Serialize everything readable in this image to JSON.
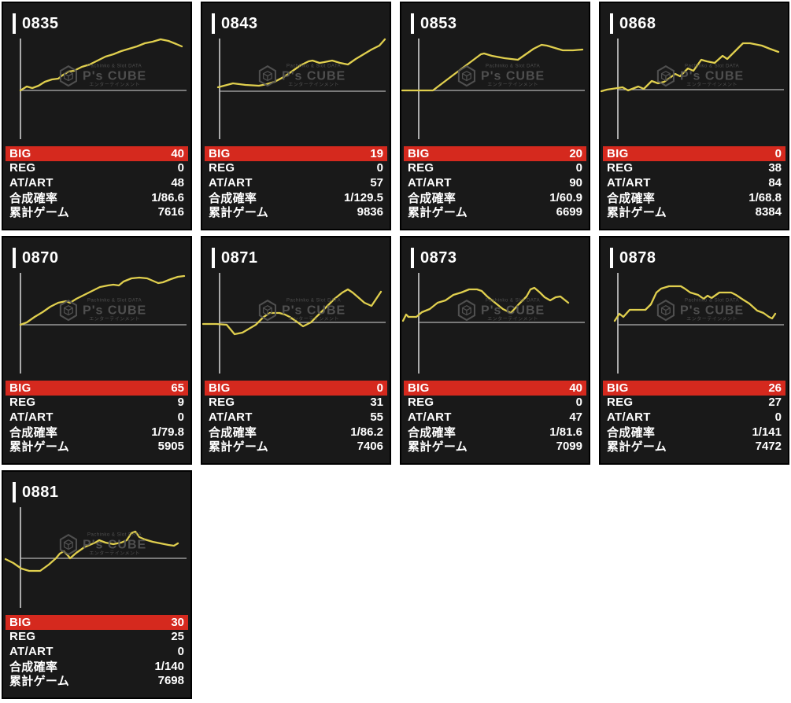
{
  "colors": {
    "page_bg": "#ffffff",
    "card_bg": "#191919",
    "card_border": "#000000",
    "axis": "#b3b3b3",
    "line": "#e0cf4e",
    "big_row_bg": "#d5291e",
    "text": "#ffffff",
    "watermark": "#555555"
  },
  "watermark": {
    "top": "Pachinko & Slot DATA",
    "brand": "P's CUBE",
    "bottom": "エンターテインメント",
    "logo": "cube-hexagon"
  },
  "stat_fields": [
    {
      "key": "big",
      "label": "BIG"
    },
    {
      "key": "reg",
      "label": "REG"
    },
    {
      "key": "atart",
      "label": "AT/ART"
    },
    {
      "key": "rate",
      "label": "合成確率"
    },
    {
      "key": "games",
      "label": "累計ゲーム"
    }
  ],
  "cards": [
    {
      "id": "0835",
      "big": "40",
      "reg": "0",
      "atart": "48",
      "rate": "1/86.6",
      "games": "7616",
      "chart": {
        "type": "line",
        "baseline": 68,
        "points": [
          [
            22,
            68
          ],
          [
            30,
            63
          ],
          [
            37,
            65
          ],
          [
            45,
            62
          ],
          [
            53,
            57
          ],
          [
            62,
            54
          ],
          [
            70,
            53
          ],
          [
            75,
            49
          ],
          [
            83,
            44
          ],
          [
            90,
            43
          ],
          [
            100,
            38
          ],
          [
            110,
            35
          ],
          [
            120,
            30
          ],
          [
            130,
            25
          ],
          [
            140,
            22
          ],
          [
            150,
            18
          ],
          [
            160,
            15
          ],
          [
            170,
            12
          ],
          [
            180,
            8
          ],
          [
            190,
            6
          ],
          [
            200,
            3
          ],
          [
            210,
            5
          ],
          [
            220,
            9
          ],
          [
            227,
            12
          ]
        ]
      }
    },
    {
      "id": "0843",
      "big": "19",
      "reg": "0",
      "atart": "57",
      "rate": "1/129.5",
      "games": "9836",
      "chart": {
        "type": "line",
        "baseline": 69,
        "points": [
          [
            20,
            64
          ],
          [
            39,
            59
          ],
          [
            55,
            61
          ],
          [
            72,
            62
          ],
          [
            82,
            60
          ],
          [
            92,
            57
          ],
          [
            105,
            50
          ],
          [
            115,
            43
          ],
          [
            125,
            36
          ],
          [
            135,
            31
          ],
          [
            140,
            30
          ],
          [
            149,
            33
          ],
          [
            155,
            32
          ],
          [
            165,
            30
          ],
          [
            175,
            33
          ],
          [
            185,
            35
          ],
          [
            195,
            28
          ],
          [
            205,
            22
          ],
          [
            215,
            16
          ],
          [
            225,
            11
          ],
          [
            232,
            3
          ]
        ]
      }
    },
    {
      "id": "0853",
      "big": "20",
      "reg": "0",
      "atart": "90",
      "rate": "1/60.9",
      "games": "6699",
      "chart": {
        "type": "line",
        "baseline": 68,
        "points": [
          [
            1,
            68
          ],
          [
            40,
            68
          ],
          [
            65,
            49
          ],
          [
            81,
            37
          ],
          [
            101,
            22
          ],
          [
            105,
            21
          ],
          [
            115,
            24
          ],
          [
            131,
            27
          ],
          [
            148,
            29
          ],
          [
            158,
            22
          ],
          [
            168,
            15
          ],
          [
            178,
            10
          ],
          [
            185,
            11
          ],
          [
            195,
            14
          ],
          [
            205,
            17
          ],
          [
            218,
            17
          ],
          [
            230,
            16
          ]
        ]
      }
    },
    {
      "id": "0868",
      "big": "0",
      "reg": "38",
      "atart": "84",
      "rate": "1/68.8",
      "games": "8384",
      "chart": {
        "type": "line",
        "baseline": 67,
        "points": [
          [
            1,
            69
          ],
          [
            8,
            67
          ],
          [
            28,
            64
          ],
          [
            35,
            68
          ],
          [
            48,
            63
          ],
          [
            55,
            66
          ],
          [
            65,
            56
          ],
          [
            73,
            59
          ],
          [
            81,
            57
          ],
          [
            95,
            47
          ],
          [
            101,
            50
          ],
          [
            111,
            40
          ],
          [
            118,
            43
          ],
          [
            128,
            29
          ],
          [
            135,
            31
          ],
          [
            145,
            33
          ],
          [
            155,
            24
          ],
          [
            161,
            28
          ],
          [
            181,
            8
          ],
          [
            190,
            8
          ],
          [
            205,
            11
          ],
          [
            215,
            15
          ],
          [
            226,
            19
          ]
        ]
      }
    },
    {
      "id": "0870",
      "big": "65",
      "reg": "9",
      "atart": "0",
      "rate": "1/79.8",
      "games": "5905",
      "chart": {
        "type": "line",
        "baseline": 68,
        "points": [
          [
            22,
            68
          ],
          [
            30,
            65
          ],
          [
            40,
            58
          ],
          [
            50,
            52
          ],
          [
            60,
            45
          ],
          [
            70,
            40
          ],
          [
            80,
            38
          ],
          [
            85,
            40
          ],
          [
            93,
            35
          ],
          [
            103,
            30
          ],
          [
            113,
            25
          ],
          [
            123,
            20
          ],
          [
            133,
            18
          ],
          [
            140,
            17
          ],
          [
            147,
            18
          ],
          [
            153,
            13
          ],
          [
            163,
            9
          ],
          [
            173,
            8
          ],
          [
            183,
            9
          ],
          [
            190,
            12
          ],
          [
            197,
            15
          ],
          [
            203,
            14
          ],
          [
            213,
            10
          ],
          [
            222,
            7
          ],
          [
            230,
            6
          ]
        ]
      }
    },
    {
      "id": "0871",
      "big": "0",
      "reg": "31",
      "atart": "55",
      "rate": "1/86.2",
      "games": "7406",
      "chart": {
        "type": "line",
        "baseline": 65,
        "points": [
          [
            1,
            67
          ],
          [
            18,
            67
          ],
          [
            31,
            68
          ],
          [
            41,
            80
          ],
          [
            51,
            78
          ],
          [
            68,
            68
          ],
          [
            78,
            58
          ],
          [
            86,
            53
          ],
          [
            98,
            53
          ],
          [
            105,
            55
          ],
          [
            111,
            58
          ],
          [
            120,
            64
          ],
          [
            128,
            70
          ],
          [
            138,
            65
          ],
          [
            148,
            55
          ],
          [
            158,
            45
          ],
          [
            168,
            35
          ],
          [
            178,
            27
          ],
          [
            185,
            23
          ],
          [
            191,
            27
          ],
          [
            198,
            33
          ],
          [
            206,
            40
          ],
          [
            215,
            44
          ],
          [
            221,
            35
          ],
          [
            227,
            26
          ]
        ]
      }
    },
    {
      "id": "0873",
      "big": "40",
      "reg": "0",
      "atart": "47",
      "rate": "1/81.6",
      "games": "7099",
      "chart": {
        "type": "line",
        "baseline": 65,
        "points": [
          [
            2,
            63
          ],
          [
            6,
            55
          ],
          [
            9,
            58
          ],
          [
            19,
            58
          ],
          [
            26,
            52
          ],
          [
            36,
            48
          ],
          [
            46,
            40
          ],
          [
            56,
            37
          ],
          [
            66,
            30
          ],
          [
            76,
            27
          ],
          [
            86,
            23
          ],
          [
            96,
            23
          ],
          [
            102,
            25
          ],
          [
            109,
            32
          ],
          [
            119,
            40
          ],
          [
            129,
            48
          ],
          [
            139,
            53
          ],
          [
            149,
            42
          ],
          [
            159,
            32
          ],
          [
            164,
            23
          ],
          [
            169,
            21
          ],
          [
            176,
            27
          ],
          [
            182,
            33
          ],
          [
            189,
            37
          ],
          [
            196,
            33
          ],
          [
            202,
            32
          ],
          [
            207,
            36
          ],
          [
            212,
            40
          ]
        ]
      }
    },
    {
      "id": "0878",
      "big": "26",
      "reg": "27",
      "atart": "0",
      "rate": "1/141",
      "games": "7472",
      "chart": {
        "type": "line",
        "baseline": 68,
        "points": [
          [
            18,
            63
          ],
          [
            24,
            54
          ],
          [
            29,
            58
          ],
          [
            37,
            49
          ],
          [
            44,
            49
          ],
          [
            57,
            49
          ],
          [
            64,
            42
          ],
          [
            71,
            27
          ],
          [
            77,
            22
          ],
          [
            87,
            19
          ],
          [
            102,
            19
          ],
          [
            107,
            22
          ],
          [
            114,
            27
          ],
          [
            124,
            30
          ],
          [
            131,
            35
          ],
          [
            136,
            31
          ],
          [
            141,
            34
          ],
          [
            151,
            27
          ],
          [
            166,
            27
          ],
          [
            172,
            30
          ],
          [
            181,
            36
          ],
          [
            189,
            41
          ],
          [
            199,
            50
          ],
          [
            207,
            53
          ],
          [
            214,
            58
          ],
          [
            218,
            60
          ],
          [
            222,
            54
          ]
        ]
      }
    },
    {
      "id": "0881",
      "big": "30",
      "reg": "25",
      "atart": "0",
      "rate": "1/140",
      "games": "7698",
      "chart": {
        "type": "line",
        "baseline": 67,
        "points": [
          [
            3,
            68
          ],
          [
            13,
            73
          ],
          [
            23,
            80
          ],
          [
            33,
            83
          ],
          [
            47,
            83
          ],
          [
            58,
            75
          ],
          [
            67,
            67
          ],
          [
            72,
            61
          ],
          [
            77,
            58
          ],
          [
            82,
            63
          ],
          [
            85,
            67
          ],
          [
            93,
            60
          ],
          [
            103,
            53
          ],
          [
            110,
            50
          ],
          [
            117,
            47
          ],
          [
            122,
            44
          ],
          [
            130,
            47
          ],
          [
            140,
            49
          ],
          [
            150,
            47
          ],
          [
            157,
            44
          ],
          [
            163,
            35
          ],
          [
            168,
            33
          ],
          [
            173,
            40
          ],
          [
            180,
            43
          ],
          [
            190,
            46
          ],
          [
            200,
            48
          ],
          [
            210,
            50
          ],
          [
            217,
            51
          ],
          [
            222,
            48
          ]
        ]
      }
    }
  ]
}
